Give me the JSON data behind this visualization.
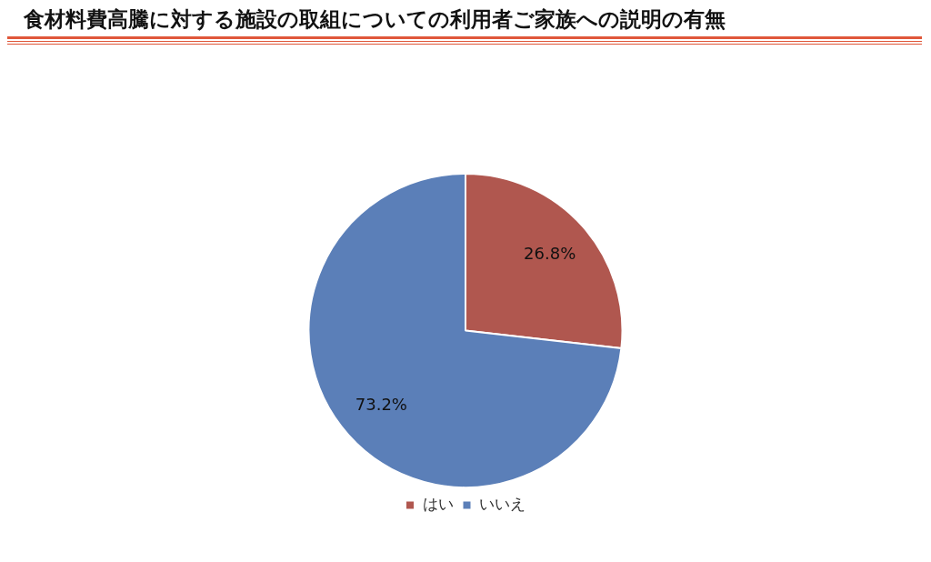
{
  "chart_data": {
    "type": "pie",
    "title": "食材料費高騰に対する施設の取組についての利用者ご家族への説明の有無",
    "categories": [
      "はい",
      "いいえ"
    ],
    "values": [
      26.8,
      73.2
    ],
    "colors": [
      "#b0574f",
      "#5b7fb8"
    ],
    "value_labels": [
      "26.8%",
      "73.2%"
    ],
    "legend": "bottom"
  }
}
